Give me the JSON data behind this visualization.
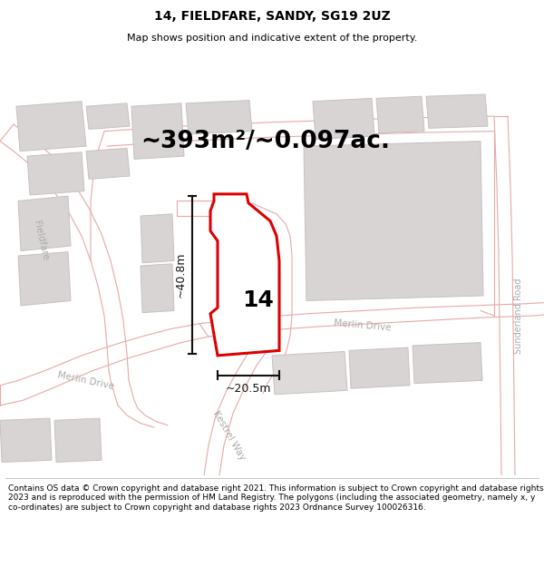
{
  "title": "14, FIELDFARE, SANDY, SG19 2UZ",
  "subtitle": "Map shows position and indicative extent of the property.",
  "footer": "Contains OS data © Crown copyright and database right 2021. This information is subject to Crown copyright and database rights 2023 and is reproduced with the permission of HM Land Registry. The polygons (including the associated geometry, namely x, y co-ordinates) are subject to Crown copyright and database rights 2023 Ordnance Survey 100026316.",
  "area_text": "~393m²/~0.097ac.",
  "label_number": "14",
  "dim_height": "~40.8m",
  "dim_width": "~20.5m",
  "map_bg": "#f9f5f5",
  "plot_fill": "#ffffff",
  "plot_edge": "#dd0000",
  "road_line": "#e8a8a8",
  "building_fill": "#d8d4d4",
  "building_edge": "#c8c0c0",
  "dim_color": "#111111",
  "road_text": "#aaaaaa",
  "title_fontsize": 10,
  "subtitle_fontsize": 8,
  "area_fontsize": 19,
  "footer_fontsize": 6.5,
  "number_fontsize": 18
}
